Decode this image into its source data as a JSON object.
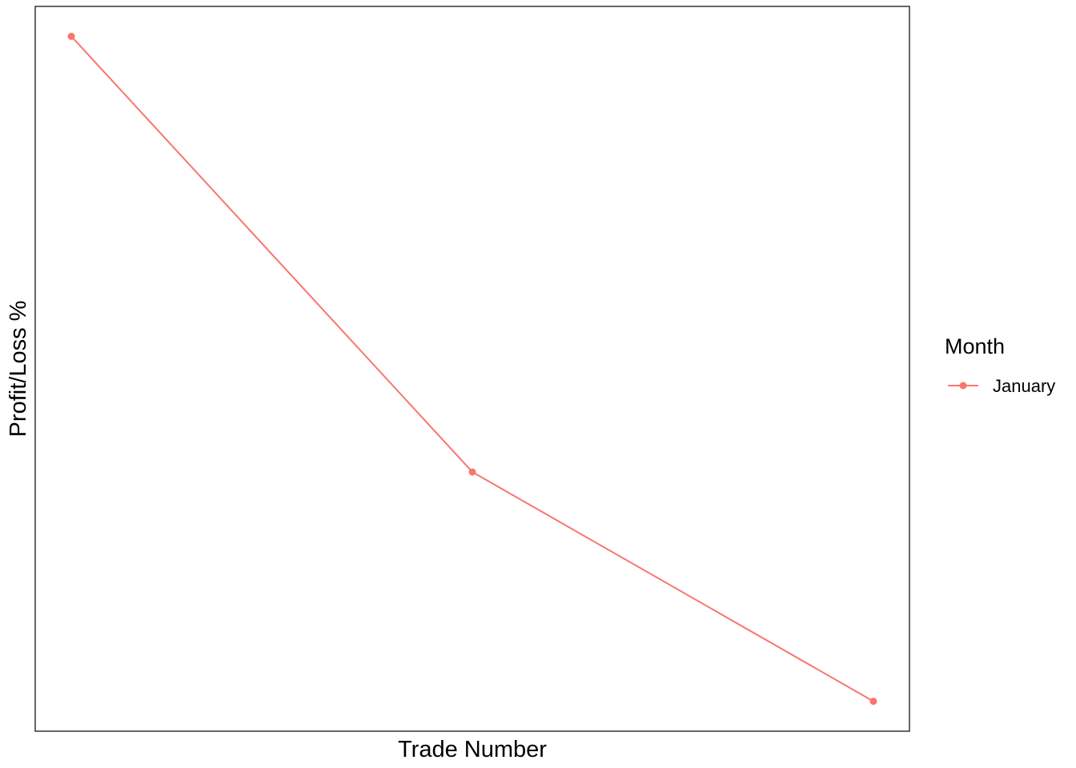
{
  "chart_data": {
    "type": "line",
    "title": "",
    "xlabel": "Trade Number",
    "ylabel": "Profit/Loss %",
    "x_ticks_shown": false,
    "y_ticks_shown": false,
    "grid": false,
    "legend": {
      "title": "Month",
      "placement": "right"
    },
    "x": [
      1,
      2,
      3
    ],
    "series": [
      {
        "name": "January",
        "color": "#F8766D",
        "marker": "circle",
        "values": [
          2.5,
          0.6,
          -0.4
        ]
      }
    ]
  }
}
